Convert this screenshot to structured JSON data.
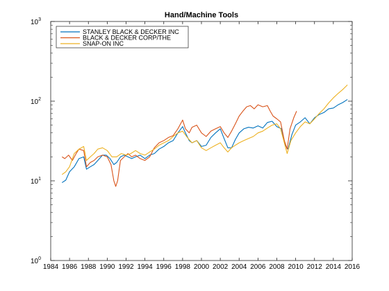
{
  "chart_data": {
    "type": "line",
    "title": "Hand/Machine Tools",
    "xlabel": "",
    "ylabel": "",
    "yscale": "log",
    "xlim": [
      1984,
      2016
    ],
    "ylim": [
      1,
      1000
    ],
    "grid": false,
    "legend_position": "top-left",
    "x_ticks": [
      1984,
      1986,
      1988,
      1990,
      1992,
      1994,
      1996,
      1998,
      2000,
      2002,
      2004,
      2006,
      2008,
      2010,
      2012,
      2014,
      2016
    ],
    "y_ticks": [
      {
        "value": 1,
        "base": "10",
        "exp": "0"
      },
      {
        "value": 10,
        "base": "10",
        "exp": "1"
      },
      {
        "value": 100,
        "base": "10",
        "exp": "2"
      },
      {
        "value": 1000,
        "base": "10",
        "exp": "3"
      }
    ],
    "series": [
      {
        "name": "STANLEY BLACK & DECKER INC",
        "color": "#0072bd",
        "points": [
          [
            1985.2,
            9.5
          ],
          [
            1985.6,
            10.2
          ],
          [
            1986.0,
            13
          ],
          [
            1986.5,
            15
          ],
          [
            1987.0,
            19
          ],
          [
            1987.5,
            20
          ],
          [
            1987.8,
            14
          ],
          [
            1988.2,
            15
          ],
          [
            1988.6,
            16
          ],
          [
            1989.0,
            18
          ],
          [
            1989.5,
            21
          ],
          [
            1989.9,
            21
          ],
          [
            1990.3,
            19
          ],
          [
            1990.7,
            16
          ],
          [
            1991.0,
            17
          ],
          [
            1991.4,
            20
          ],
          [
            1991.8,
            21
          ],
          [
            1992.2,
            20
          ],
          [
            1992.6,
            19
          ],
          [
            1993.0,
            20
          ],
          [
            1993.5,
            21
          ],
          [
            1994.0,
            19
          ],
          [
            1994.5,
            21
          ],
          [
            1995.0,
            22
          ],
          [
            1995.5,
            25
          ],
          [
            1996.0,
            27
          ],
          [
            1996.5,
            30
          ],
          [
            1997.0,
            32
          ],
          [
            1997.5,
            40
          ],
          [
            1998.0,
            48
          ],
          [
            1998.3,
            40
          ],
          [
            1998.7,
            32
          ],
          [
            1999.0,
            30
          ],
          [
            1999.5,
            32
          ],
          [
            2000.0,
            27
          ],
          [
            2000.5,
            28
          ],
          [
            2001.0,
            35
          ],
          [
            2001.5,
            40
          ],
          [
            2002.0,
            45
          ],
          [
            2002.4,
            34
          ],
          [
            2002.8,
            26
          ],
          [
            2003.2,
            26
          ],
          [
            2003.6,
            33
          ],
          [
            2004.0,
            40
          ],
          [
            2004.5,
            45
          ],
          [
            2005.0,
            47
          ],
          [
            2005.5,
            46
          ],
          [
            2006.0,
            49
          ],
          [
            2006.5,
            46
          ],
          [
            2007.0,
            54
          ],
          [
            2007.5,
            56
          ],
          [
            2008.0,
            48
          ],
          [
            2008.5,
            45
          ],
          [
            2008.9,
            28
          ],
          [
            2009.2,
            25
          ],
          [
            2009.6,
            38
          ],
          [
            2010.0,
            50
          ],
          [
            2010.5,
            55
          ],
          [
            2011.0,
            62
          ],
          [
            2011.5,
            52
          ],
          [
            2012.0,
            62
          ],
          [
            2012.5,
            68
          ],
          [
            2013.0,
            72
          ],
          [
            2013.5,
            80
          ],
          [
            2014.0,
            82
          ],
          [
            2014.5,
            90
          ],
          [
            2015.0,
            96
          ],
          [
            2015.5,
            105
          ]
        ]
      },
      {
        "name": "BLACK & DECKER CORP/THE",
        "color": "#d95319",
        "points": [
          [
            1985.2,
            20
          ],
          [
            1985.5,
            19
          ],
          [
            1985.9,
            21
          ],
          [
            1986.3,
            18
          ],
          [
            1986.7,
            22
          ],
          [
            1987.0,
            25
          ],
          [
            1987.5,
            24
          ],
          [
            1987.8,
            15
          ],
          [
            1988.2,
            17
          ],
          [
            1988.6,
            18
          ],
          [
            1989.0,
            20
          ],
          [
            1989.5,
            21
          ],
          [
            1990.0,
            20
          ],
          [
            1990.4,
            16
          ],
          [
            1990.7,
            10
          ],
          [
            1990.9,
            8.5
          ],
          [
            1991.1,
            10
          ],
          [
            1991.4,
            18
          ],
          [
            1991.8,
            20
          ],
          [
            1992.2,
            22
          ],
          [
            1992.6,
            20
          ],
          [
            1993.0,
            21
          ],
          [
            1993.5,
            19
          ],
          [
            1994.0,
            18
          ],
          [
            1994.5,
            20
          ],
          [
            1995.0,
            26
          ],
          [
            1995.5,
            30
          ],
          [
            1996.0,
            32
          ],
          [
            1996.5,
            35
          ],
          [
            1997.0,
            37
          ],
          [
            1997.5,
            45
          ],
          [
            1998.0,
            58
          ],
          [
            1998.3,
            45
          ],
          [
            1998.7,
            40
          ],
          [
            1999.0,
            47
          ],
          [
            1999.5,
            50
          ],
          [
            2000.0,
            40
          ],
          [
            2000.5,
            36
          ],
          [
            2001.0,
            42
          ],
          [
            2001.5,
            45
          ],
          [
            2002.0,
            48
          ],
          [
            2002.4,
            40
          ],
          [
            2002.8,
            35
          ],
          [
            2003.2,
            42
          ],
          [
            2003.6,
            52
          ],
          [
            2004.0,
            65
          ],
          [
            2004.4,
            75
          ],
          [
            2004.8,
            85
          ],
          [
            2005.2,
            88
          ],
          [
            2005.6,
            80
          ],
          [
            2006.0,
            90
          ],
          [
            2006.5,
            85
          ],
          [
            2007.0,
            88
          ],
          [
            2007.3,
            75
          ],
          [
            2007.6,
            65
          ],
          [
            2008.0,
            60
          ],
          [
            2008.4,
            55
          ],
          [
            2008.8,
            32
          ],
          [
            2009.1,
            25
          ],
          [
            2009.4,
            45
          ],
          [
            2009.8,
            62
          ],
          [
            2010.1,
            75
          ]
        ]
      },
      {
        "name": "SNAP-ON INC",
        "color": "#edb120",
        "points": [
          [
            1985.2,
            12
          ],
          [
            1985.6,
            13
          ],
          [
            1986.0,
            15
          ],
          [
            1986.5,
            22
          ],
          [
            1987.0,
            25
          ],
          [
            1987.5,
            27
          ],
          [
            1987.8,
            18
          ],
          [
            1988.2,
            20
          ],
          [
            1988.6,
            22
          ],
          [
            1989.0,
            25
          ],
          [
            1989.5,
            26
          ],
          [
            1990.0,
            24
          ],
          [
            1990.5,
            20
          ],
          [
            1991.0,
            20
          ],
          [
            1991.5,
            22
          ],
          [
            1992.0,
            21
          ],
          [
            1992.5,
            22
          ],
          [
            1993.0,
            24
          ],
          [
            1993.5,
            22
          ],
          [
            1994.0,
            21
          ],
          [
            1994.5,
            23
          ],
          [
            1995.0,
            25
          ],
          [
            1995.5,
            28
          ],
          [
            1996.0,
            30
          ],
          [
            1996.5,
            32
          ],
          [
            1997.0,
            36
          ],
          [
            1997.5,
            40
          ],
          [
            1998.0,
            42
          ],
          [
            1998.5,
            35
          ],
          [
            1999.0,
            30
          ],
          [
            1999.5,
            32
          ],
          [
            2000.0,
            26
          ],
          [
            2000.5,
            24
          ],
          [
            2001.0,
            26
          ],
          [
            2001.5,
            28
          ],
          [
            2002.0,
            30
          ],
          [
            2002.4,
            26
          ],
          [
            2002.8,
            23
          ],
          [
            2003.2,
            26
          ],
          [
            2003.6,
            28
          ],
          [
            2004.0,
            30
          ],
          [
            2004.5,
            32
          ],
          [
            2005.0,
            34
          ],
          [
            2005.5,
            36
          ],
          [
            2006.0,
            40
          ],
          [
            2006.5,
            42
          ],
          [
            2007.0,
            46
          ],
          [
            2007.5,
            50
          ],
          [
            2008.0,
            52
          ],
          [
            2008.4,
            45
          ],
          [
            2008.8,
            30
          ],
          [
            2009.1,
            22
          ],
          [
            2009.5,
            32
          ],
          [
            2010.0,
            40
          ],
          [
            2010.5,
            48
          ],
          [
            2011.0,
            55
          ],
          [
            2011.5,
            52
          ],
          [
            2012.0,
            60
          ],
          [
            2012.5,
            70
          ],
          [
            2013.0,
            80
          ],
          [
            2013.5,
            95
          ],
          [
            2014.0,
            110
          ],
          [
            2014.5,
            125
          ],
          [
            2015.0,
            140
          ],
          [
            2015.5,
            160
          ]
        ]
      }
    ]
  }
}
